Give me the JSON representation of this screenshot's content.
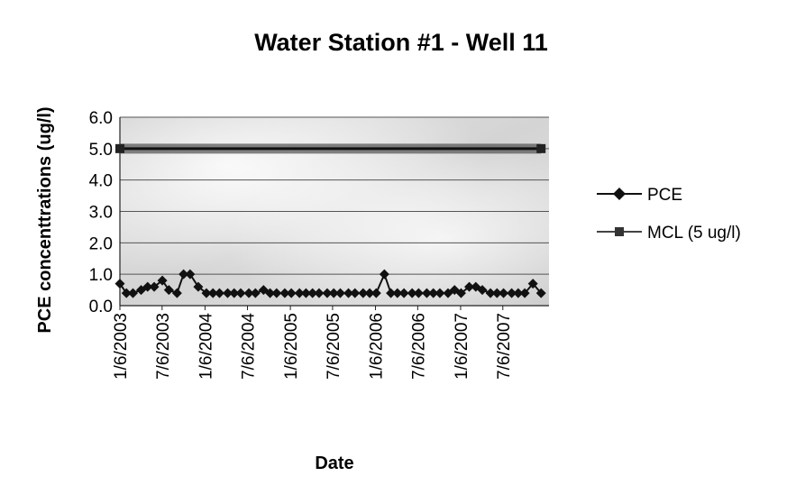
{
  "chart_data": {
    "type": "line",
    "title": "Water Station #1 - Well 11",
    "xlabel": "Date",
    "ylabel": "PCE concenttrations (ug/l)",
    "ylim": [
      0,
      6
    ],
    "yticks": [
      "0.0",
      "1.0",
      "2.0",
      "3.0",
      "4.0",
      "5.0",
      "6.0"
    ],
    "xlim": [
      "2003-01-06",
      "2008-01-20"
    ],
    "xticks": [
      "1/6/2003",
      "7/6/2003",
      "1/6/2004",
      "7/6/2004",
      "1/6/2005",
      "7/6/2005",
      "1/6/2006",
      "7/6/2006",
      "1/6/2007",
      "7/6/2007"
    ],
    "grid": true,
    "legend_position": "right",
    "series": [
      {
        "name": "PCE",
        "color": "#111111",
        "marker": "diamond",
        "points": [
          [
            "2003-01-06",
            0.7
          ],
          [
            "2003-02-03",
            0.4
          ],
          [
            "2003-03-03",
            0.4
          ],
          [
            "2003-04-07",
            0.5
          ],
          [
            "2003-05-05",
            0.6
          ],
          [
            "2003-06-02",
            0.6
          ],
          [
            "2003-07-07",
            0.8
          ],
          [
            "2003-08-04",
            0.5
          ],
          [
            "2003-09-08",
            0.4
          ],
          [
            "2003-10-06",
            1.0
          ],
          [
            "2003-11-03",
            1.0
          ],
          [
            "2003-12-08",
            0.6
          ],
          [
            "2004-01-12",
            0.4
          ],
          [
            "2004-02-09",
            0.4
          ],
          [
            "2004-03-08",
            0.4
          ],
          [
            "2004-04-12",
            0.4
          ],
          [
            "2004-05-10",
            0.4
          ],
          [
            "2004-06-07",
            0.4
          ],
          [
            "2004-07-12",
            0.4
          ],
          [
            "2004-08-09",
            0.4
          ],
          [
            "2004-09-13",
            0.5
          ],
          [
            "2004-10-11",
            0.4
          ],
          [
            "2004-11-08",
            0.4
          ],
          [
            "2004-12-13",
            0.4
          ],
          [
            "2005-01-10",
            0.4
          ],
          [
            "2005-02-14",
            0.4
          ],
          [
            "2005-03-14",
            0.4
          ],
          [
            "2005-04-11",
            0.4
          ],
          [
            "2005-05-09",
            0.4
          ],
          [
            "2005-06-13",
            0.4
          ],
          [
            "2005-07-11",
            0.4
          ],
          [
            "2005-08-08",
            0.4
          ],
          [
            "2005-09-12",
            0.4
          ],
          [
            "2005-10-10",
            0.4
          ],
          [
            "2005-11-14",
            0.4
          ],
          [
            "2005-12-12",
            0.4
          ],
          [
            "2006-01-09",
            0.4
          ],
          [
            "2006-02-13",
            1.0
          ],
          [
            "2006-03-13",
            0.4
          ],
          [
            "2006-04-10",
            0.4
          ],
          [
            "2006-05-08",
            0.4
          ],
          [
            "2006-06-12",
            0.4
          ],
          [
            "2006-07-10",
            0.4
          ],
          [
            "2006-08-14",
            0.4
          ],
          [
            "2006-09-11",
            0.4
          ],
          [
            "2006-10-09",
            0.4
          ],
          [
            "2006-11-13",
            0.4
          ],
          [
            "2006-12-11",
            0.5
          ],
          [
            "2007-01-08",
            0.4
          ],
          [
            "2007-02-12",
            0.6
          ],
          [
            "2007-03-12",
            0.6
          ],
          [
            "2007-04-09",
            0.5
          ],
          [
            "2007-05-14",
            0.4
          ],
          [
            "2007-06-11",
            0.4
          ],
          [
            "2007-07-09",
            0.4
          ],
          [
            "2007-08-13",
            0.4
          ],
          [
            "2007-09-10",
            0.4
          ],
          [
            "2007-10-08",
            0.4
          ],
          [
            "2007-11-12",
            0.7
          ],
          [
            "2007-12-17",
            0.4
          ]
        ]
      },
      {
        "name": "MCL (5 ug/l)",
        "color": "#444444",
        "marker": "square",
        "points": [
          [
            "2003-01-06",
            5.0
          ],
          [
            "2007-12-17",
            5.0
          ]
        ]
      }
    ]
  }
}
